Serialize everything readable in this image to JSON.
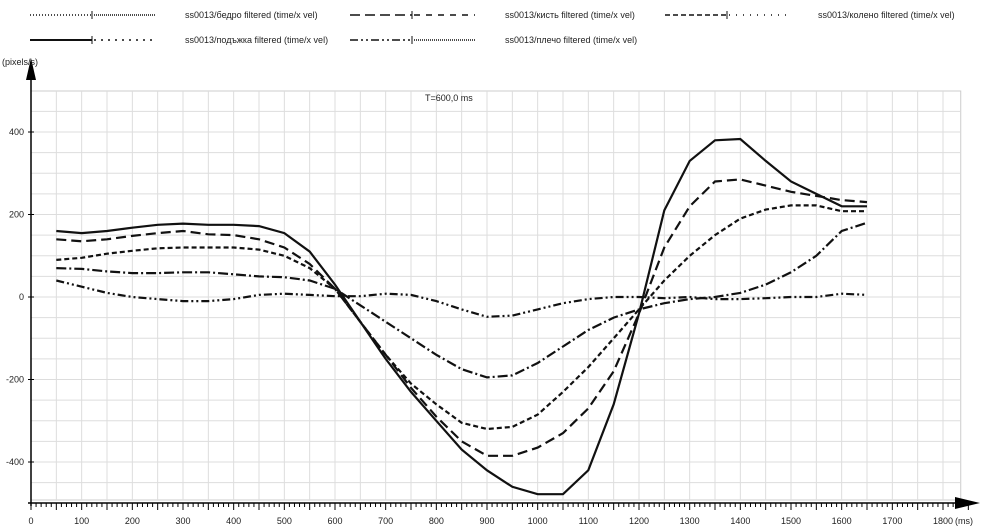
{
  "chart_data": {
    "type": "line",
    "annotation": "T=600,0 ms",
    "xlabel": "(ms)",
    "ylabel": "(pixels/s)",
    "xlim": [
      0,
      1800
    ],
    "ylim": [
      -495,
      500
    ],
    "xticks": [
      0,
      100,
      200,
      300,
      400,
      500,
      600,
      700,
      800,
      900,
      1000,
      1100,
      1200,
      1300,
      1400,
      1500,
      1600,
      1700,
      1800
    ],
    "yticks": [
      400,
      200,
      0,
      -200,
      -400
    ],
    "grid": true,
    "legend_position": "top",
    "x": [
      50,
      100,
      150,
      200,
      250,
      300,
      350,
      400,
      450,
      500,
      550,
      600,
      650,
      700,
      750,
      800,
      850,
      900,
      950,
      1000,
      1050,
      1100,
      1150,
      1200,
      1250,
      1300,
      1350,
      1400,
      1450,
      1500,
      1550,
      1600,
      1650
    ],
    "series": [
      {
        "name": "ss0013/бедро filtered (time/x vel)",
        "style": "dash-dot",
        "values": [
          70,
          68,
          62,
          58,
          58,
          60,
          60,
          55,
          50,
          48,
          40,
          20,
          -20,
          -60,
          -100,
          -140,
          -175,
          -195,
          -190,
          -160,
          -120,
          -80,
          -50,
          -30,
          -15,
          -5,
          0,
          10,
          30,
          60,
          100,
          160,
          180
        ]
      },
      {
        "name": "ss0013/кисть filtered (time/x vel)",
        "style": "long-dash",
        "values": [
          140,
          135,
          140,
          148,
          155,
          160,
          152,
          150,
          140,
          120,
          80,
          20,
          -60,
          -140,
          -220,
          -290,
          -350,
          -385,
          -385,
          -365,
          -330,
          -270,
          -180,
          -40,
          120,
          220,
          280,
          285,
          270,
          255,
          245,
          235,
          230
        ]
      },
      {
        "name": "ss0013/колено filtered (time/x vel)",
        "style": "short-dash",
        "values": [
          90,
          95,
          105,
          112,
          118,
          120,
          120,
          120,
          115,
          100,
          70,
          20,
          -60,
          -140,
          -210,
          -260,
          -305,
          -320,
          -315,
          -285,
          -230,
          -170,
          -100,
          -30,
          40,
          100,
          150,
          190,
          212,
          222,
          222,
          208,
          208
        ]
      },
      {
        "name": "ss0013/подъжка filtered (time/x vel)",
        "style": "solid",
        "values": [
          160,
          155,
          160,
          168,
          175,
          178,
          175,
          175,
          172,
          155,
          110,
          30,
          -60,
          -150,
          -230,
          -300,
          -370,
          -420,
          -460,
          -478,
          -478,
          -420,
          -260,
          -40,
          210,
          330,
          380,
          383,
          330,
          280,
          250,
          220,
          220
        ]
      },
      {
        "name": "ss0013/плечо filtered (time/x vel)",
        "style": "dash-dot-dot",
        "values": [
          40,
          25,
          10,
          0,
          -5,
          -10,
          -10,
          -5,
          5,
          8,
          5,
          2,
          2,
          8,
          5,
          -10,
          -30,
          -48,
          -45,
          -30,
          -15,
          -5,
          0,
          0,
          -3,
          0,
          -5,
          -5,
          -3,
          0,
          0,
          8,
          5
        ]
      }
    ]
  }
}
